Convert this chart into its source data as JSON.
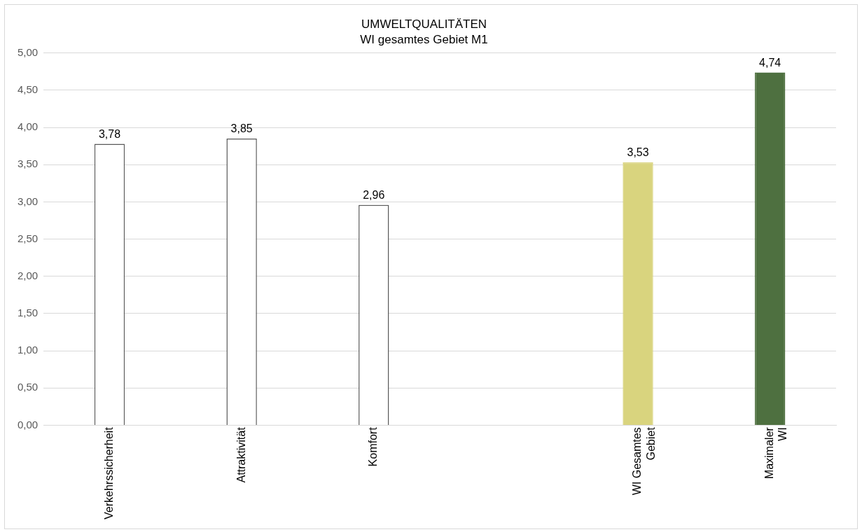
{
  "chart_data": {
    "type": "bar",
    "title": "UMWELTQUALITÄTEN",
    "subtitle": "WI gesamtes Gebiet M1",
    "categories": [
      "Verkehrssicherheit",
      "Attraktivität",
      "Komfort",
      null,
      "WI Gesamtes Gebiet",
      "Maximaler WI"
    ],
    "values": [
      3.78,
      3.85,
      2.96,
      null,
      3.53,
      4.74
    ],
    "colors": [
      "#ffffff",
      "#ffffff",
      "#ffffff",
      "#ffffff",
      "#d9d47e",
      "#4e7040"
    ],
    "value_labels": [
      "3,78",
      "3,85",
      "2,96",
      null,
      "3,53",
      "4,74"
    ],
    "ylim": [
      0,
      5
    ],
    "yticks": [
      {
        "value": 0,
        "label": "0,00"
      },
      {
        "value": 0.5,
        "label": "0,50"
      },
      {
        "value": 1,
        "label": "1,00"
      },
      {
        "value": 1.5,
        "label": "1,50"
      },
      {
        "value": 2,
        "label": "2,00"
      },
      {
        "value": 2.5,
        "label": "2,50"
      },
      {
        "value": 3,
        "label": "3,00"
      },
      {
        "value": 3.5,
        "label": "3,50"
      },
      {
        "value": 4,
        "label": "4,00"
      },
      {
        "value": 4.5,
        "label": "4,50"
      },
      {
        "value": 5,
        "label": "5,00"
      }
    ],
    "grid": "y"
  }
}
